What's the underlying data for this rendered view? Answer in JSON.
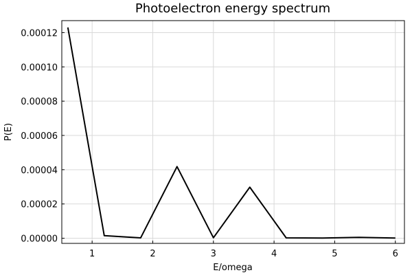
{
  "chart_data": {
    "type": "line",
    "title": "Photoelectron energy spectrum",
    "xlabel": "E/omega",
    "ylabel": "P(E)",
    "xlim": [
      0.5,
      6.15
    ],
    "ylim": [
      -3e-06,
      0.000127
    ],
    "xticks": [
      1,
      2,
      3,
      4,
      5,
      6
    ],
    "xtick_labels": [
      "1",
      "2",
      "3",
      "4",
      "5",
      "6"
    ],
    "yticks": [
      0,
      2e-05,
      4e-05,
      6e-05,
      8e-05,
      0.0001,
      0.00012
    ],
    "ytick_labels": [
      "0.00000",
      "0.00002",
      "0.00004",
      "0.00006",
      "0.00008",
      "0.00010",
      "0.00012"
    ],
    "grid": true,
    "legend": "none",
    "series": [
      {
        "x": [
          0.6,
          1.2,
          1.8,
          2.4,
          3.0,
          3.6,
          4.2,
          4.8,
          5.4,
          6.0
        ],
        "values": [
          0.000123,
          1.5e-06,
          2e-07,
          4.18e-05,
          3e-07,
          2.98e-05,
          2e-07,
          1e-07,
          5e-07,
          1e-07
        ],
        "color": "#000000"
      }
    ]
  }
}
